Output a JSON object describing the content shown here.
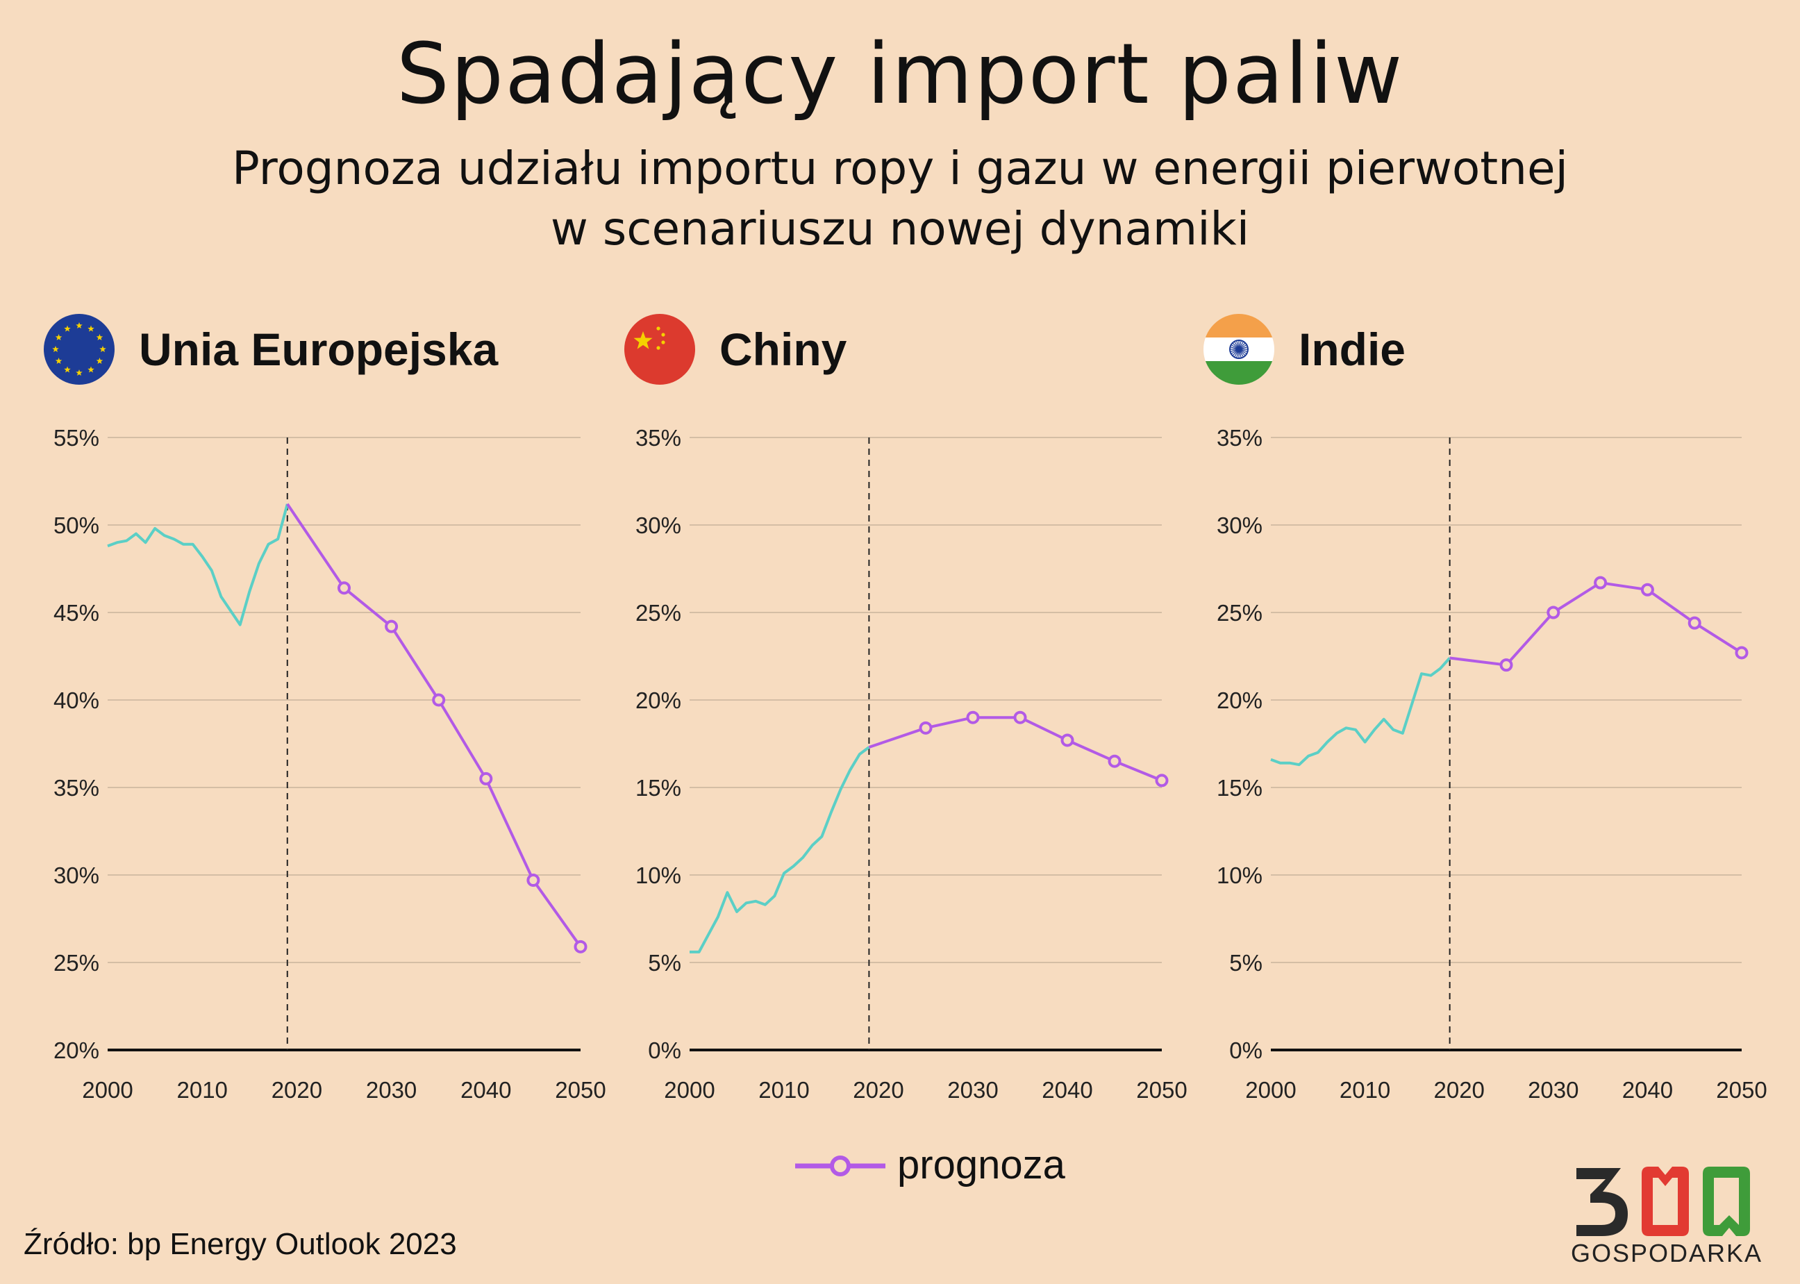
{
  "title": "Spadający import paliw",
  "subtitle_line1": "Prognoza udziału importu ropy i gazu w energii pierwotnej",
  "subtitle_line2": "w scenariuszu nowej dynamiki",
  "legend": {
    "label": "prognoza"
  },
  "source": "Źródło: bp Energy Outlook 2023",
  "logo": {
    "number": "300",
    "text": "GOSPODARKA"
  },
  "colors": {
    "historical": "#5bcfc6",
    "forecast": "#b25ae6",
    "background": "#f7dcc0",
    "grid": "#c9b49c"
  },
  "panels": [
    {
      "country": "Unia Europejska",
      "flag": "eu-flag-icon"
    },
    {
      "country": "Chiny",
      "flag": "china-flag-icon"
    },
    {
      "country": "Indie",
      "flag": "india-flag-icon"
    }
  ],
  "chart_data": [
    {
      "type": "line",
      "title": "Unia Europejska",
      "xlim": [
        2000,
        2050
      ],
      "x_ticks": [
        "2000",
        "2010",
        "2020",
        "2030",
        "2040",
        "2050"
      ],
      "ylim": [
        20,
        55
      ],
      "y_ticks": [
        "20%",
        "25%",
        "30%",
        "35%",
        "40%",
        "45%",
        "50%",
        "55%"
      ],
      "grid": true,
      "split_year": 2019,
      "series": [
        {
          "x": [
            2000,
            2001,
            2002,
            2003,
            2004,
            2005,
            2006,
            2007,
            2008,
            2009,
            2010,
            2011,
            2012,
            2013,
            2014,
            2015,
            2016,
            2017,
            2018,
            2019
          ],
          "values": [
            48.8,
            49.0,
            49.1,
            49.5,
            49.0,
            49.8,
            49.4,
            49.2,
            48.9,
            48.9,
            48.2,
            47.4,
            45.9,
            45.1,
            44.3,
            46.2,
            47.8,
            48.9,
            49.2,
            51.2
          ]
        },
        {
          "name": "prognoza",
          "x": [
            2019,
            2025,
            2030,
            2035,
            2040,
            2045,
            2050
          ],
          "values": [
            51.2,
            46.4,
            44.2,
            40.0,
            35.5,
            29.7,
            25.9
          ]
        }
      ]
    },
    {
      "type": "line",
      "title": "Chiny",
      "xlim": [
        2000,
        2050
      ],
      "x_ticks": [
        "2000",
        "2010",
        "2020",
        "2030",
        "2040",
        "2050"
      ],
      "ylim": [
        0,
        35
      ],
      "y_ticks": [
        "0%",
        "5%",
        "10%",
        "15%",
        "20%",
        "25%",
        "30%",
        "35%"
      ],
      "grid": true,
      "split_year": 2019,
      "series": [
        {
          "x": [
            2000,
            2001,
            2002,
            2003,
            2004,
            2005,
            2006,
            2007,
            2008,
            2009,
            2010,
            2011,
            2012,
            2013,
            2014,
            2015,
            2016,
            2017,
            2018,
            2019
          ],
          "values": [
            5.6,
            5.6,
            6.6,
            7.6,
            9.0,
            7.9,
            8.4,
            8.5,
            8.3,
            8.8,
            10.1,
            10.5,
            11.0,
            11.7,
            12.2,
            13.6,
            14.9,
            16.0,
            16.9,
            17.3
          ]
        },
        {
          "name": "prognoza",
          "x": [
            2019,
            2025,
            2030,
            2035,
            2040,
            2045,
            2050
          ],
          "values": [
            17.3,
            18.4,
            19.0,
            19.0,
            17.7,
            16.5,
            15.4
          ]
        }
      ]
    },
    {
      "type": "line",
      "title": "Indie",
      "xlim": [
        2000,
        2050
      ],
      "x_ticks": [
        "2000",
        "2010",
        "2020",
        "2030",
        "2040",
        "2050"
      ],
      "ylim": [
        0,
        35
      ],
      "y_ticks": [
        "0%",
        "5%",
        "10%",
        "15%",
        "20%",
        "25%",
        "30%",
        "35%"
      ],
      "grid": true,
      "split_year": 2019,
      "series": [
        {
          "x": [
            2000,
            2001,
            2002,
            2003,
            2004,
            2005,
            2006,
            2007,
            2008,
            2009,
            2010,
            2011,
            2012,
            2013,
            2014,
            2015,
            2016,
            2017,
            2018,
            2019
          ],
          "values": [
            16.6,
            16.4,
            16.4,
            16.3,
            16.8,
            17.0,
            17.6,
            18.1,
            18.4,
            18.3,
            17.6,
            18.3,
            18.9,
            18.3,
            18.1,
            19.8,
            21.5,
            21.4,
            21.8,
            22.4
          ]
        },
        {
          "name": "prognoza",
          "x": [
            2019,
            2025,
            2030,
            2035,
            2040,
            2045,
            2050
          ],
          "values": [
            22.4,
            22.0,
            25.0,
            26.7,
            26.3,
            24.4,
            22.7
          ]
        }
      ]
    }
  ]
}
